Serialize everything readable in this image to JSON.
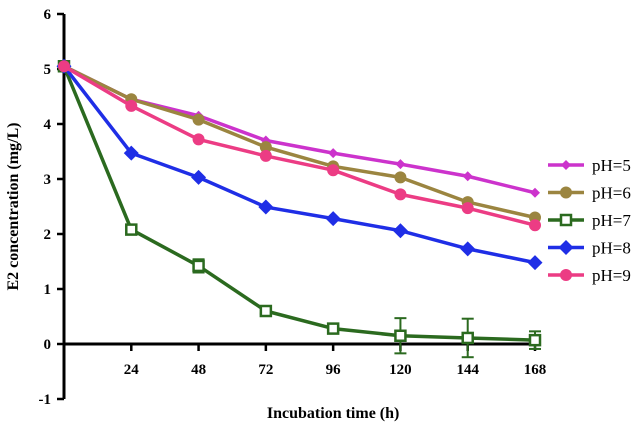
{
  "chart_data": {
    "type": "line",
    "title": "",
    "xlabel": "Incubation time (h)",
    "ylabel": "E2 concentration (mg/L)",
    "x": [
      0,
      24,
      48,
      72,
      96,
      120,
      144,
      168
    ],
    "xticks": [
      24,
      48,
      72,
      96,
      120,
      144,
      168
    ],
    "xtick_labels": [
      "24",
      "48",
      "72",
      "96",
      "120",
      "144",
      "168"
    ],
    "yticks": [
      -1,
      0,
      1,
      2,
      3,
      4,
      5,
      6
    ],
    "ytick_labels": [
      "-1",
      "0",
      "1",
      "2",
      "3",
      "4",
      "5",
      "6"
    ],
    "xlim": [
      0,
      168
    ],
    "ylim": [
      -1,
      6
    ],
    "legend_position": "right",
    "series": [
      {
        "name": "pH=5",
        "color": "#cc33cc",
        "marker": "diamond-small",
        "values": [
          5.05,
          4.45,
          4.15,
          3.7,
          3.47,
          3.27,
          3.05,
          2.75
        ],
        "errors": [
          0,
          0,
          0,
          0,
          0,
          0,
          0,
          0
        ]
      },
      {
        "name": "pH=6",
        "color": "#9b8540",
        "marker": "circle",
        "values": [
          5.05,
          4.45,
          4.08,
          3.58,
          3.23,
          3.03,
          2.58,
          2.3
        ],
        "errors": [
          0,
          0,
          0,
          0,
          0,
          0,
          0,
          0
        ]
      },
      {
        "name": "pH=7",
        "color": "#2b6a1f",
        "marker": "open-square",
        "values": [
          5.05,
          2.08,
          1.42,
          0.6,
          0.28,
          0.15,
          0.11,
          0.07
        ],
        "errors": [
          0,
          0.05,
          0.12,
          0.05,
          0.05,
          0.32,
          0.35,
          0.16
        ]
      },
      {
        "name": "pH=8",
        "color": "#1f2ee6",
        "marker": "diamond",
        "values": [
          5.05,
          3.47,
          3.03,
          2.49,
          2.28,
          2.06,
          1.73,
          1.48
        ],
        "errors": [
          0,
          0,
          0,
          0,
          0,
          0,
          0,
          0
        ]
      },
      {
        "name": "pH=9",
        "color": "#ec3c84",
        "marker": "circle",
        "values": [
          5.05,
          4.33,
          3.72,
          3.42,
          3.16,
          2.72,
          2.47,
          2.16
        ],
        "errors": [
          0,
          0,
          0,
          0,
          0,
          0,
          0,
          0
        ]
      }
    ]
  }
}
